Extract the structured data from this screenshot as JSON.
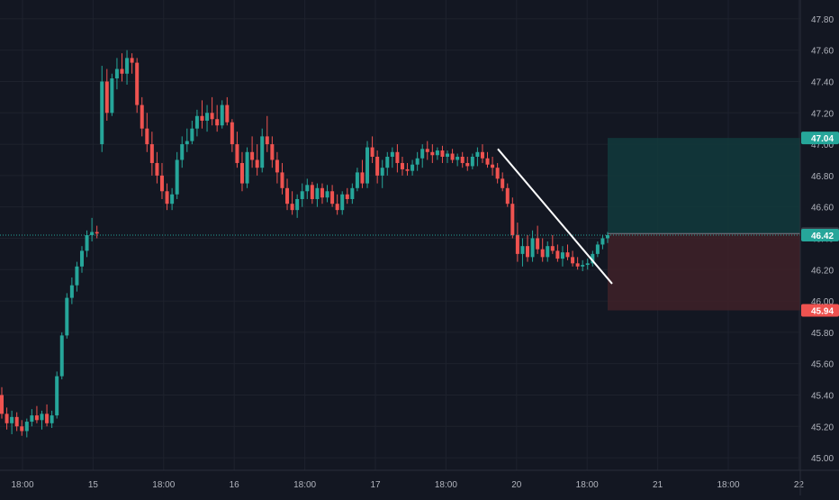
{
  "chart_data": {
    "type": "candlestick",
    "y_axis": {
      "ticks": [
        "45.00",
        "45.20",
        "45.40",
        "45.60",
        "45.80",
        "46.00",
        "46.20",
        "46.40",
        "46.60",
        "46.80",
        "47.00",
        "47.20",
        "47.40",
        "47.60",
        "47.80"
      ],
      "ylim": [
        44.92,
        47.92
      ]
    },
    "x_axis": {
      "ticks": [
        "18:00",
        "15",
        "18:00",
        "16",
        "18:00",
        "17",
        "18:00",
        "20",
        "18:00",
        "21",
        "18:00",
        "22"
      ]
    },
    "price_badges": {
      "target": "47.04",
      "entry": "46.43",
      "last": "46.42",
      "stop": "45.94"
    },
    "position_zone": {
      "target": 47.04,
      "entry": 46.43,
      "stop": 45.94
    },
    "trendline": {
      "from_price": 46.97,
      "to_price": 46.11
    },
    "colors": {
      "background": "#131722",
      "up": "#26a69a",
      "down": "#ef5350",
      "grid": "#1e222d",
      "axis_text": "#b2b5be",
      "profit_zone": "#123a3c",
      "loss_zone": "#3f2128",
      "trendline": "#ffffff"
    },
    "candles": [
      [
        45.4,
        45.45,
        45.25,
        45.28
      ],
      [
        45.28,
        45.32,
        45.18,
        45.22
      ],
      [
        45.22,
        45.3,
        45.15,
        45.26
      ],
      [
        45.26,
        45.29,
        45.17,
        45.2
      ],
      [
        45.2,
        45.24,
        45.14,
        45.17
      ],
      [
        45.17,
        45.25,
        45.13,
        45.23
      ],
      [
        45.23,
        45.31,
        45.2,
        45.27
      ],
      [
        45.27,
        45.33,
        45.22,
        45.24
      ],
      [
        45.24,
        45.3,
        45.18,
        45.28
      ],
      [
        45.28,
        45.34,
        45.2,
        45.22
      ],
      [
        45.22,
        45.3,
        45.19,
        45.27
      ],
      [
        45.27,
        45.55,
        45.25,
        45.52
      ],
      [
        45.52,
        45.8,
        45.5,
        45.78
      ],
      [
        45.78,
        46.05,
        45.76,
        46.02
      ],
      [
        46.02,
        46.15,
        45.98,
        46.1
      ],
      [
        46.1,
        46.25,
        46.06,
        46.22
      ],
      [
        46.22,
        46.35,
        46.18,
        46.32
      ],
      [
        46.32,
        46.45,
        46.28,
        46.42
      ],
      [
        46.42,
        46.53,
        46.38,
        46.44
      ],
      [
        46.44,
        46.48,
        46.4,
        46.43
      ],
      [
        47.0,
        47.5,
        46.95,
        47.4
      ],
      [
        47.4,
        47.48,
        47.15,
        47.2
      ],
      [
        47.2,
        47.45,
        47.18,
        47.42
      ],
      [
        47.42,
        47.55,
        47.35,
        47.48
      ],
      [
        47.48,
        47.58,
        47.4,
        47.45
      ],
      [
        47.45,
        47.6,
        47.38,
        47.55
      ],
      [
        47.55,
        47.58,
        47.45,
        47.52
      ],
      [
        47.52,
        47.55,
        47.2,
        47.25
      ],
      [
        47.25,
        47.3,
        47.05,
        47.1
      ],
      [
        47.1,
        47.2,
        46.95,
        47.0
      ],
      [
        47.0,
        47.08,
        46.8,
        46.88
      ],
      [
        46.88,
        46.95,
        46.75,
        46.8
      ],
      [
        46.8,
        46.88,
        46.65,
        46.7
      ],
      [
        46.7,
        46.75,
        46.58,
        46.62
      ],
      [
        46.62,
        46.72,
        46.58,
        46.68
      ],
      [
        46.68,
        46.95,
        46.65,
        46.9
      ],
      [
        46.9,
        47.05,
        46.85,
        47.0
      ],
      [
        47.0,
        47.1,
        46.95,
        47.02
      ],
      [
        47.02,
        47.15,
        47.0,
        47.1
      ],
      [
        47.1,
        47.22,
        47.05,
        47.18
      ],
      [
        47.18,
        47.28,
        47.1,
        47.15
      ],
      [
        47.15,
        47.25,
        47.08,
        47.2
      ],
      [
        47.2,
        47.3,
        47.12,
        47.16
      ],
      [
        47.16,
        47.25,
        47.08,
        47.12
      ],
      [
        47.12,
        47.28,
        47.1,
        47.25
      ],
      [
        47.25,
        47.3,
        47.12,
        47.14
      ],
      [
        47.14,
        47.16,
        46.95,
        47.0
      ],
      [
        47.0,
        47.08,
        46.85,
        46.88
      ],
      [
        46.88,
        46.95,
        46.7,
        46.75
      ],
      [
        46.75,
        46.98,
        46.72,
        46.95
      ],
      [
        46.95,
        47.05,
        46.85,
        46.9
      ],
      [
        46.9,
        47.0,
        46.8,
        46.85
      ],
      [
        46.85,
        47.1,
        46.82,
        47.05
      ],
      [
        47.05,
        47.18,
        46.95,
        47.0
      ],
      [
        47.0,
        47.05,
        46.85,
        46.9
      ],
      [
        46.9,
        46.95,
        46.75,
        46.82
      ],
      [
        46.82,
        46.88,
        46.68,
        46.72
      ],
      [
        46.72,
        46.78,
        46.58,
        46.62
      ],
      [
        46.62,
        46.7,
        46.55,
        46.58
      ],
      [
        46.58,
        46.68,
        46.53,
        46.65
      ],
      [
        46.65,
        46.75,
        46.6,
        46.7
      ],
      [
        46.7,
        46.78,
        46.65,
        46.74
      ],
      [
        46.74,
        46.76,
        46.62,
        46.65
      ],
      [
        46.65,
        46.75,
        46.6,
        46.72
      ],
      [
        46.72,
        46.75,
        46.62,
        46.66
      ],
      [
        46.66,
        46.74,
        46.63,
        46.7
      ],
      [
        46.7,
        46.74,
        46.6,
        46.62
      ],
      [
        46.62,
        46.68,
        46.55,
        46.58
      ],
      [
        46.58,
        46.7,
        46.55,
        46.68
      ],
      [
        46.68,
        46.72,
        46.62,
        46.65
      ],
      [
        46.65,
        46.75,
        46.62,
        46.72
      ],
      [
        46.72,
        46.85,
        46.7,
        46.82
      ],
      [
        46.82,
        46.9,
        46.72,
        46.75
      ],
      [
        46.75,
        47.02,
        46.72,
        46.98
      ],
      [
        46.98,
        47.05,
        46.88,
        46.92
      ],
      [
        46.92,
        46.96,
        46.75,
        46.8
      ],
      [
        46.8,
        46.9,
        46.72,
        46.85
      ],
      [
        46.85,
        46.95,
        46.8,
        46.92
      ],
      [
        46.92,
        46.98,
        46.85,
        46.95
      ],
      [
        46.95,
        47.0,
        46.82,
        46.88
      ],
      [
        46.88,
        46.92,
        46.8,
        46.84
      ],
      [
        46.84,
        46.88,
        46.8,
        46.83
      ],
      [
        46.83,
        46.9,
        46.8,
        46.87
      ],
      [
        46.87,
        46.95,
        46.83,
        46.91
      ],
      [
        46.91,
        47.0,
        46.85,
        46.97
      ],
      [
        46.97,
        47.02,
        46.9,
        46.95
      ],
      [
        46.95,
        47.0,
        46.88,
        46.93
      ],
      [
        46.93,
        46.98,
        46.9,
        46.96
      ],
      [
        46.96,
        46.99,
        46.88,
        46.92
      ],
      [
        46.92,
        46.96,
        46.88,
        46.94
      ],
      [
        46.94,
        46.97,
        46.88,
        46.9
      ],
      [
        46.9,
        46.94,
        46.86,
        46.92
      ],
      [
        46.92,
        46.95,
        46.85,
        46.88
      ],
      [
        46.88,
        46.92,
        46.83,
        46.86
      ],
      [
        46.86,
        46.94,
        46.84,
        46.92
      ],
      [
        46.92,
        46.98,
        46.86,
        46.95
      ],
      [
        46.95,
        47.0,
        46.88,
        46.91
      ],
      [
        46.91,
        46.95,
        46.85,
        46.87
      ],
      [
        46.87,
        46.92,
        46.8,
        46.85
      ],
      [
        46.85,
        46.88,
        46.75,
        46.78
      ],
      [
        46.78,
        46.82,
        46.7,
        46.72
      ],
      [
        46.72,
        46.75,
        46.6,
        46.62
      ],
      [
        46.62,
        46.66,
        46.4,
        46.42
      ],
      [
        46.42,
        46.5,
        46.25,
        46.3
      ],
      [
        46.3,
        46.4,
        46.22,
        46.35
      ],
      [
        46.35,
        46.42,
        46.25,
        46.28
      ],
      [
        46.28,
        46.45,
        46.25,
        46.4
      ],
      [
        46.4,
        46.48,
        46.3,
        46.33
      ],
      [
        46.33,
        46.4,
        46.25,
        46.28
      ],
      [
        46.28,
        46.38,
        46.25,
        46.35
      ],
      [
        46.35,
        46.42,
        46.3,
        46.32
      ],
      [
        46.32,
        46.36,
        46.25,
        46.27
      ],
      [
        46.27,
        46.35,
        46.22,
        46.31
      ],
      [
        46.31,
        46.36,
        46.26,
        46.28
      ],
      [
        46.28,
        46.32,
        46.22,
        46.24
      ],
      [
        46.24,
        46.28,
        46.2,
        46.22
      ],
      [
        46.22,
        46.26,
        46.19,
        46.23
      ],
      [
        46.23,
        46.27,
        46.2,
        46.24
      ],
      [
        46.24,
        46.32,
        46.22,
        46.3
      ],
      [
        46.3,
        46.38,
        46.28,
        46.36
      ],
      [
        46.36,
        46.42,
        46.33,
        46.4
      ],
      [
        46.4,
        46.44,
        46.37,
        46.42
      ]
    ]
  }
}
